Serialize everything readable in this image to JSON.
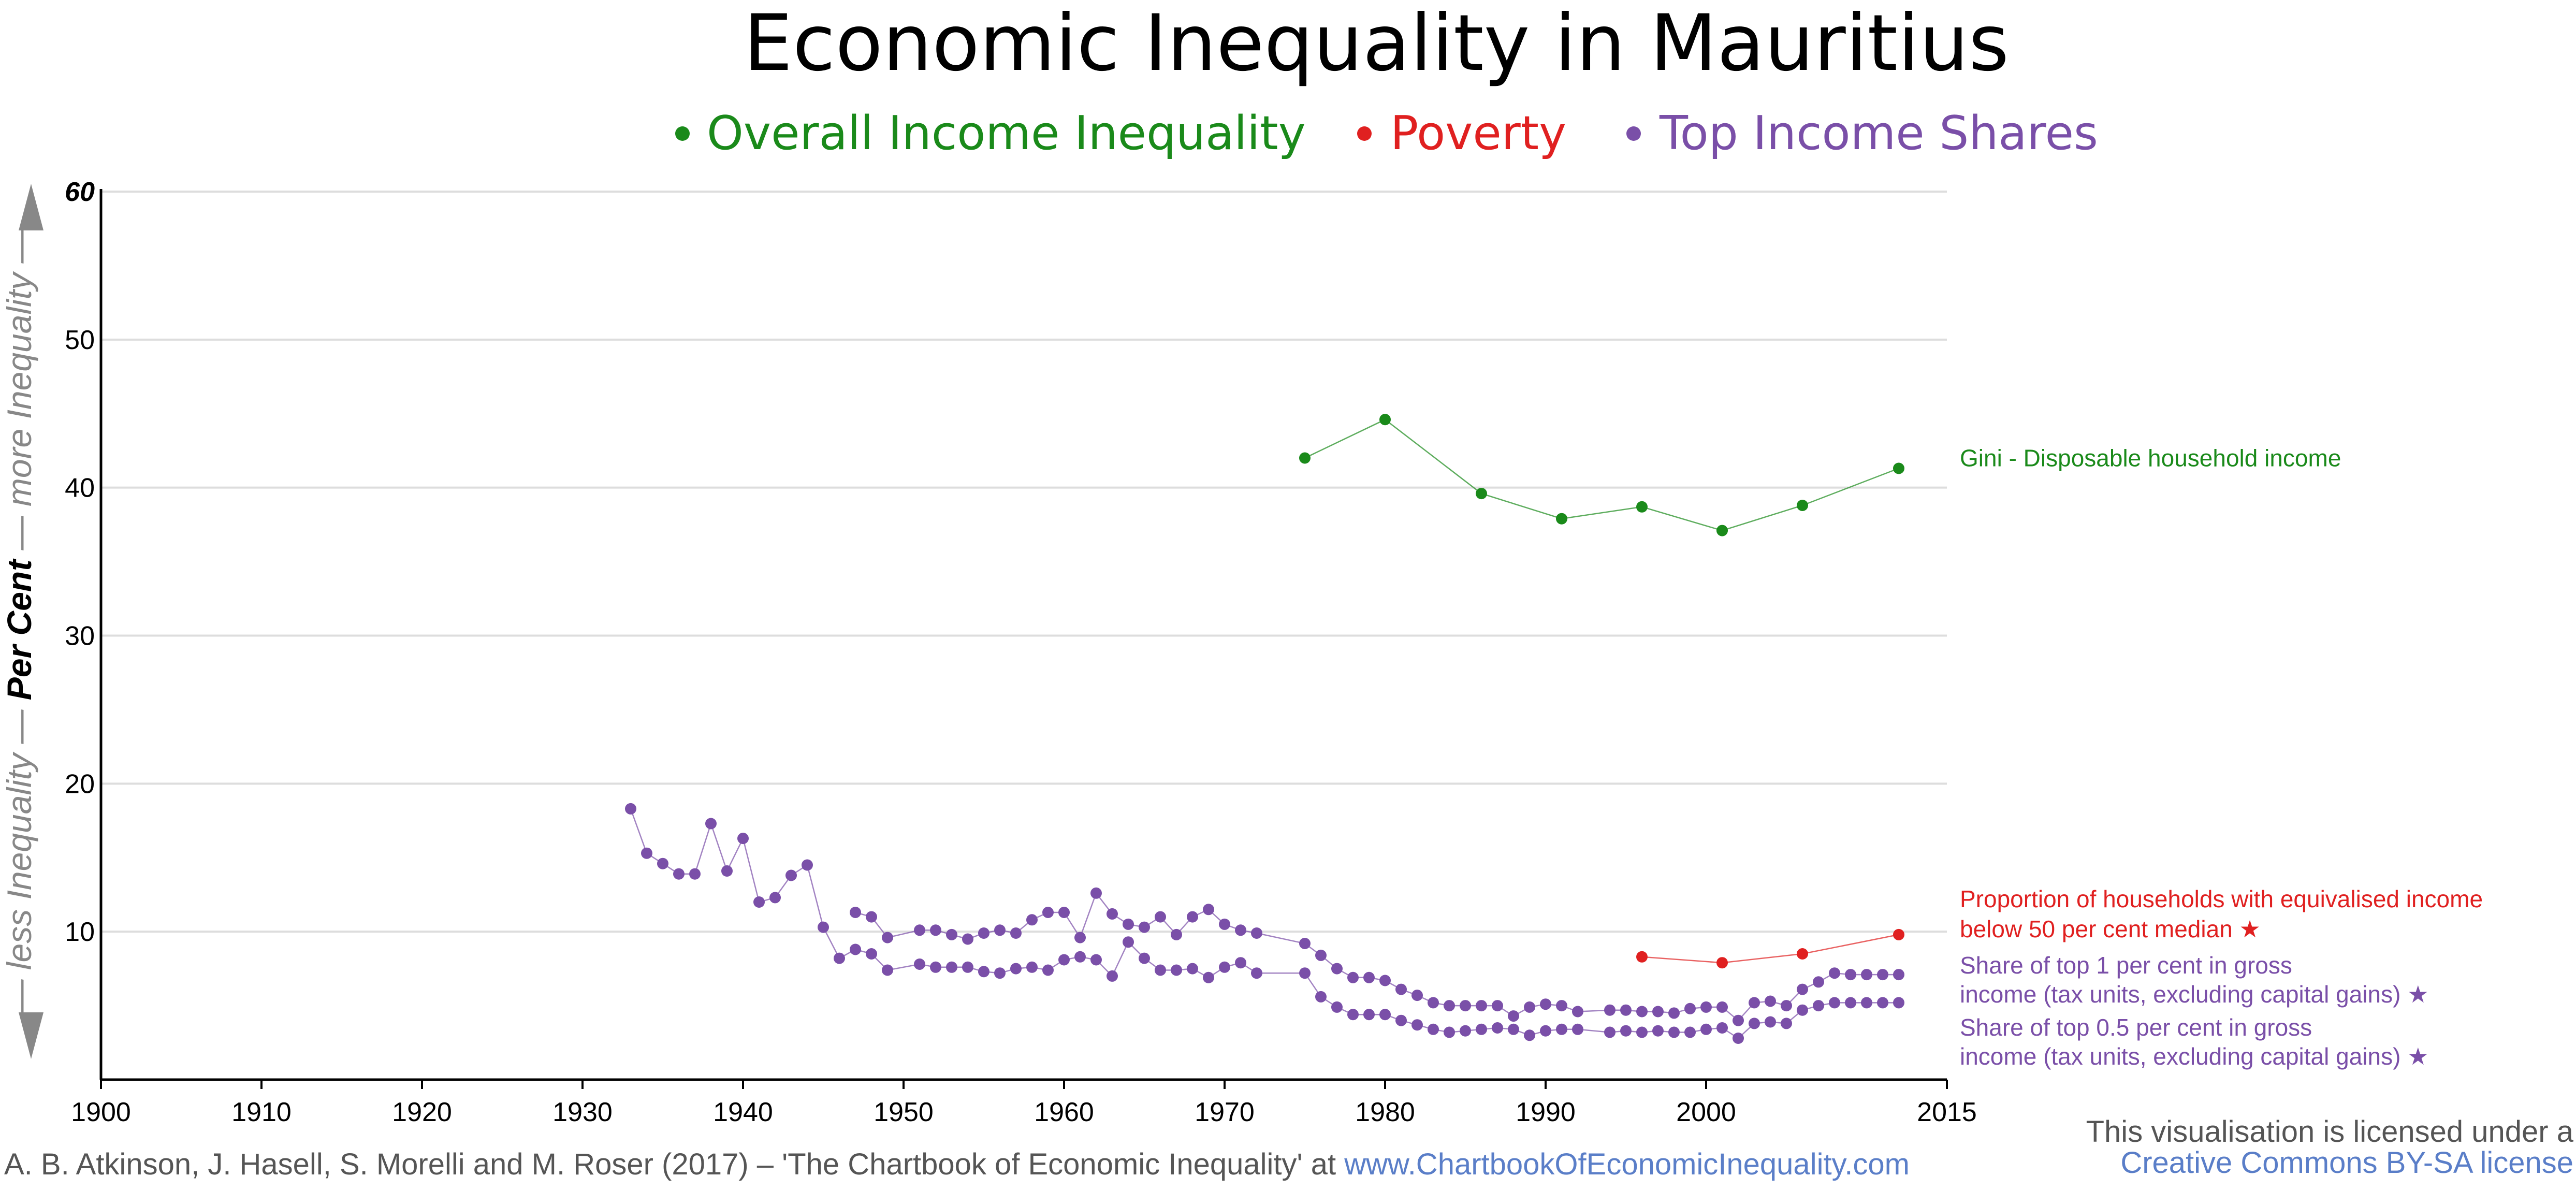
{
  "title": "Economic Inequality in Mauritius",
  "legend": [
    {
      "label": "Overall Income Inequality",
      "color": "#1a8a1a"
    },
    {
      "label": "Poverty",
      "color": "#e02020"
    },
    {
      "label": "Top Income Shares",
      "color": "#7a4fa8"
    }
  ],
  "y_axis": {
    "less": "less Inequality",
    "unit": "Per Cent",
    "more": "more Inequality"
  },
  "chart_data": {
    "type": "line",
    "title": "Economic Inequality in Mauritius",
    "xlim": [
      1900,
      2015
    ],
    "ylim": [
      0,
      60
    ],
    "x_ticks": [
      "1900",
      "1910",
      "1920",
      "1930",
      "1940",
      "1950",
      "1960",
      "1970",
      "1980",
      "1990",
      "2000",
      "2015"
    ],
    "y_ticks": [
      "10",
      "20",
      "30",
      "40",
      "50",
      "60"
    ],
    "grid": true,
    "series": [
      {
        "name": "Gini - Disposable household income",
        "color": "#1a8a1a",
        "x": [
          1975,
          1980,
          1986,
          1991,
          1996,
          2001,
          2006,
          2012
        ],
        "y": [
          42.0,
          44.6,
          39.6,
          37.9,
          38.7,
          37.1,
          38.8,
          41.3
        ]
      },
      {
        "name": "Proportion of households with equivalised income below 50 per cent median ★",
        "name_lines": [
          "Proportion of households with equivalised income",
          " below 50 per cent median ★"
        ],
        "color": "#e02020",
        "x": [
          1996,
          2001,
          2006,
          2012
        ],
        "y": [
          8.3,
          7.9,
          8.5,
          9.8
        ]
      },
      {
        "name": "Share of top 1 per cent in gross income (tax units, excluding capital gains) ★",
        "name_lines": [
          "Share of top 1 per cent in gross",
          " income (tax units, excluding capital gains) ★"
        ],
        "color": "#7a4fa8",
        "x": [
          1933,
          1934,
          1935,
          1936,
          1937,
          1938,
          1939,
          1940,
          1941,
          1942,
          1943,
          1944,
          1945,
          1946,
          1947,
          1948,
          1949,
          1951,
          1952,
          1953,
          1954,
          1955,
          1956,
          1957,
          1958,
          1959,
          1960,
          1961,
          1962,
          1963,
          1964,
          1965,
          1966,
          1967,
          1968,
          1969,
          1970,
          1971,
          1972,
          1975,
          1976,
          1977,
          1978,
          1979,
          1980,
          1981,
          1982,
          1983,
          1984,
          1985,
          1986,
          1987,
          1988,
          1989,
          1990,
          1991,
          1992,
          1994,
          1995,
          1996,
          1997,
          1998,
          1999,
          2000,
          2001,
          2002,
          2003,
          2004,
          2005,
          2006,
          2007,
          2008,
          2009,
          2010,
          2011,
          2012
        ],
        "y": [
          18.3,
          15.3,
          14.6,
          13.9,
          13.9,
          17.3,
          14.1,
          16.3,
          12.0,
          12.3,
          13.8,
          14.5,
          10.3,
          8.2,
          8.8,
          8.5,
          7.4,
          7.8,
          7.6,
          7.6,
          7.6,
          7.3,
          7.2,
          7.5,
          7.6,
          7.4,
          8.1,
          8.3,
          8.1,
          7.0,
          9.3,
          8.2,
          7.4,
          7.4,
          7.5,
          6.9,
          7.6,
          7.9,
          7.2,
          7.2,
          5.6,
          4.9,
          4.4,
          4.4,
          4.4,
          4.0,
          3.7,
          3.4,
          3.2,
          3.3,
          3.4,
          3.5,
          3.4,
          3.0,
          3.3,
          3.4,
          3.4,
          3.2,
          3.3,
          3.2,
          3.3,
          3.2,
          3.2,
          3.4,
          3.5,
          2.8,
          3.8,
          3.9,
          3.8,
          4.7,
          5.0,
          5.2,
          5.2,
          5.2,
          5.2,
          5.2
        ]
      },
      {
        "name": "Share of top 0.5 per cent in gross income (tax units, excluding capital gains) ★",
        "name_lines": [
          "Share of top 0.5 per cent in gross",
          " income (tax units, excluding capital gains) ★"
        ],
        "color": "#7a4fa8",
        "x": [
          1947,
          1948,
          1949,
          1951,
          1952,
          1953,
          1954,
          1955,
          1956,
          1957,
          1958,
          1959,
          1960,
          1961,
          1962,
          1963,
          1964,
          1965,
          1966,
          1967,
          1968,
          1969,
          1970,
          1971,
          1972,
          1975,
          1976,
          1977,
          1978,
          1979,
          1980,
          1981,
          1982,
          1983,
          1984,
          1985,
          1986,
          1987,
          1988,
          1989,
          1990,
          1991,
          1992,
          1994,
          1995,
          1996,
          1997,
          1998,
          1999,
          2000,
          2001,
          2002,
          2003,
          2004,
          2005,
          2006,
          2007,
          2008,
          2009,
          2010,
          2011,
          2012
        ],
        "y": [
          11.3,
          11.0,
          9.6,
          10.1,
          10.1,
          9.8,
          9.5,
          9.9,
          10.1,
          9.9,
          10.8,
          11.3,
          11.3,
          9.6,
          12.6,
          11.2,
          10.5,
          10.3,
          11.0,
          9.8,
          11.0,
          11.5,
          10.5,
          10.1,
          9.9,
          9.2,
          8.4,
          7.5,
          6.9,
          6.9,
          6.7,
          6.1,
          5.7,
          5.2,
          5.0,
          5.0,
          5.0,
          5.0,
          4.3,
          4.9,
          5.1,
          5.0,
          4.6,
          4.7,
          4.7,
          4.6,
          4.6,
          4.5,
          4.8,
          4.9,
          4.9,
          4.0,
          5.2,
          5.3,
          5.0,
          6.1,
          6.6,
          7.2,
          7.1,
          7.1,
          7.1,
          7.1
        ]
      }
    ]
  },
  "footer": {
    "citation": "A. B. Atkinson, J. Hasell, S. Morelli and M. Roser (2017) – 'The Chartbook of Economic Inequality' at ",
    "citation_link": "www.ChartbookOfEconomicInequality.com",
    "license_line1": "This visualisation is licensed under a",
    "license_line2": "Creative Commons BY-SA license"
  }
}
